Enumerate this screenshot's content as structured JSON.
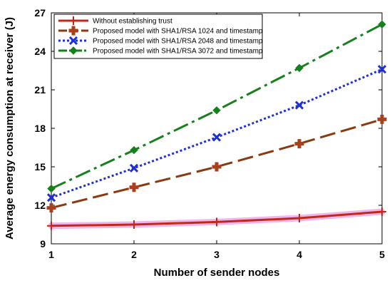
{
  "chart_data": {
    "type": "line",
    "xlabel": "Number of sender nodes",
    "ylabel": "Average energy consumption at receiver (J)",
    "x": [
      1,
      2,
      3,
      4,
      5
    ],
    "xlim": [
      1,
      5
    ],
    "ylim": [
      9,
      27
    ],
    "xticks": [
      "1",
      "2",
      "3",
      "4",
      "5"
    ],
    "yticks": [
      "9",
      "12",
      "15",
      "18",
      "21",
      "24",
      "27"
    ],
    "legend_position": "top-left",
    "grid": false,
    "series": [
      {
        "name": "Without establishing trust",
        "values": [
          10.4,
          10.5,
          10.7,
          11.0,
          11.5
        ],
        "color": "#c0281a",
        "marker": "plus",
        "line": "solid",
        "highlight": "#f0a8e8"
      },
      {
        "name": "Proposed model with SHA1/RSA 1024 and timestamp",
        "values": [
          11.8,
          13.4,
          15.0,
          16.8,
          18.7
        ],
        "color": "#8b3a10",
        "marker_color": "#a8401c",
        "marker": "filled-plus",
        "line": "long-dash"
      },
      {
        "name": "Proposed model with SHA1/RSA 2048 and timestamp",
        "values": [
          12.6,
          14.9,
          17.3,
          19.8,
          22.6
        ],
        "color": "#1f2fd6",
        "marker": "x",
        "line": "dotted"
      },
      {
        "name": "Proposed model with SHA1/RSA 3072 and timestamp",
        "values": [
          13.3,
          16.3,
          19.4,
          22.7,
          26.1
        ],
        "color": "#16801c",
        "marker": "diamond",
        "line": "dash-dot"
      }
    ]
  }
}
